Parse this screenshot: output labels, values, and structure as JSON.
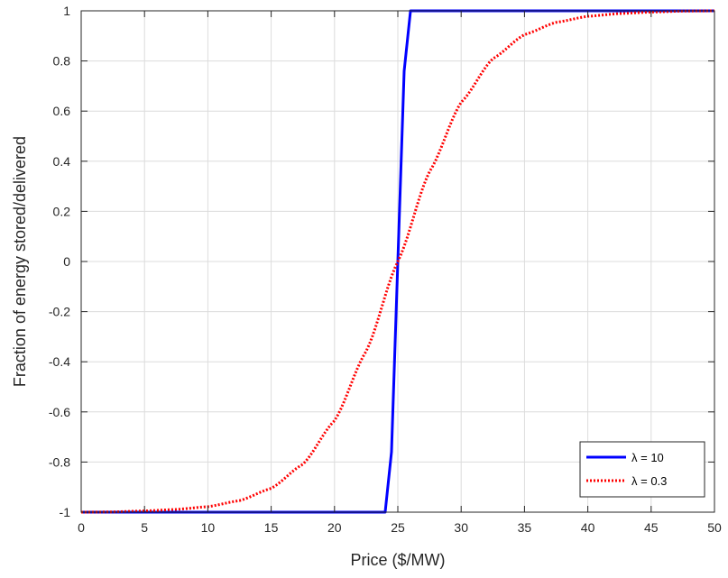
{
  "chart_data": {
    "type": "line",
    "xlabel": "Price ($/MW)",
    "ylabel": "Fraction of energy stored/delivered",
    "xlim": [
      0,
      50
    ],
    "ylim": [
      -1,
      1
    ],
    "xticks": [
      0,
      5,
      10,
      15,
      20,
      25,
      30,
      35,
      40,
      45,
      50
    ],
    "xtick_labels": [
      "0",
      "5",
      "10",
      "15",
      "20",
      "25",
      "30",
      "35",
      "40",
      "45",
      "50"
    ],
    "yticks": [
      -1,
      -0.8,
      -0.6,
      -0.4,
      -0.2,
      0,
      0.2,
      0.4,
      0.6,
      0.8,
      1
    ],
    "ytick_labels": [
      "-1",
      "-0.8",
      "-0.6",
      "-0.4",
      "-0.2",
      "0",
      "0.2",
      "0.4",
      "0.6",
      "0.8",
      "1"
    ],
    "grid": true,
    "legend_position": "bottom-right",
    "series": [
      {
        "name": "λ = 10",
        "color": "#0000ff",
        "style": "solid",
        "x": [
          0,
          5,
          10,
          15,
          20,
          24,
          24.5,
          25,
          25.5,
          26,
          30,
          35,
          40,
          45,
          50
        ],
        "y": [
          -1,
          -1,
          -1,
          -1,
          -1,
          -1,
          -0.76,
          0,
          0.76,
          1,
          1,
          1,
          1,
          1,
          1
        ]
      },
      {
        "name": "λ = 0.3",
        "color": "#ff0000",
        "style": "dotted",
        "x": [
          0,
          2.5,
          5,
          7.5,
          10,
          12.5,
          15,
          17.5,
          20,
          22.5,
          25,
          27.5,
          30,
          32.5,
          35,
          37.5,
          40,
          42.5,
          45,
          47.5,
          50
        ],
        "y": [
          -1.0,
          -0.999,
          -0.995,
          -0.989,
          -0.978,
          -0.954,
          -0.905,
          -0.809,
          -0.635,
          -0.358,
          0.0,
          0.358,
          0.635,
          0.809,
          0.905,
          0.954,
          0.978,
          0.989,
          0.995,
          0.999,
          1.0
        ]
      }
    ]
  }
}
